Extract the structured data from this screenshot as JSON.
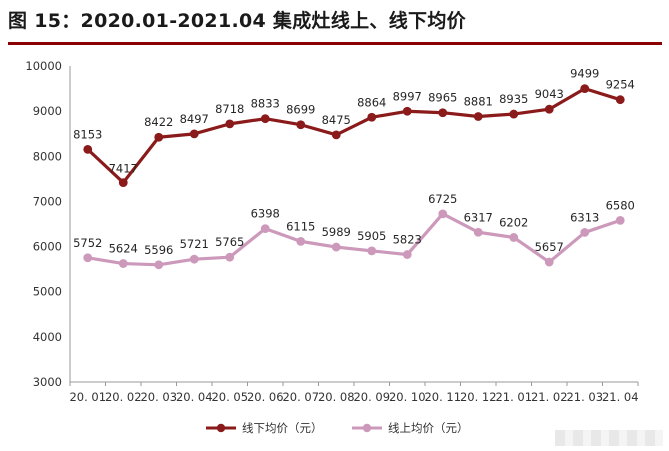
{
  "title": "图 15：2020.01-2021.04 集成灶线上、线下均价",
  "colors": {
    "title_rule": "#8b0000"
  },
  "chart_data": {
    "type": "line",
    "title": "图 15：2020.01-2021.04 集成灶线上、线下均价",
    "xlabel": "",
    "ylabel": "",
    "categories": [
      "20.01",
      "20.02",
      "20.03",
      "20.04",
      "20.05",
      "20.06",
      "20.07",
      "20.08",
      "20.09",
      "20.10",
      "20.11",
      "20.12",
      "21.01",
      "21.02",
      "21.03",
      "21.04"
    ],
    "y_ticks": [
      3000,
      4000,
      5000,
      6000,
      7000,
      8000,
      9000,
      10000
    ],
    "ylim": [
      3000,
      10000
    ],
    "grid": false,
    "legend_position": "bottom",
    "series": [
      {
        "name": "线下均价（元）",
        "color": "#8b1a1a",
        "values": [
          8153,
          7417,
          8422,
          8497,
          8718,
          8833,
          8699,
          8475,
          8864,
          8997,
          8965,
          8881,
          8935,
          9043,
          9499,
          9254
        ]
      },
      {
        "name": "线上均价（元）",
        "color": "#cc99bb",
        "values": [
          5752,
          5624,
          5596,
          5721,
          5765,
          6398,
          6115,
          5989,
          5905,
          5823,
          6725,
          6317,
          6202,
          5657,
          6313,
          6580
        ]
      }
    ]
  }
}
